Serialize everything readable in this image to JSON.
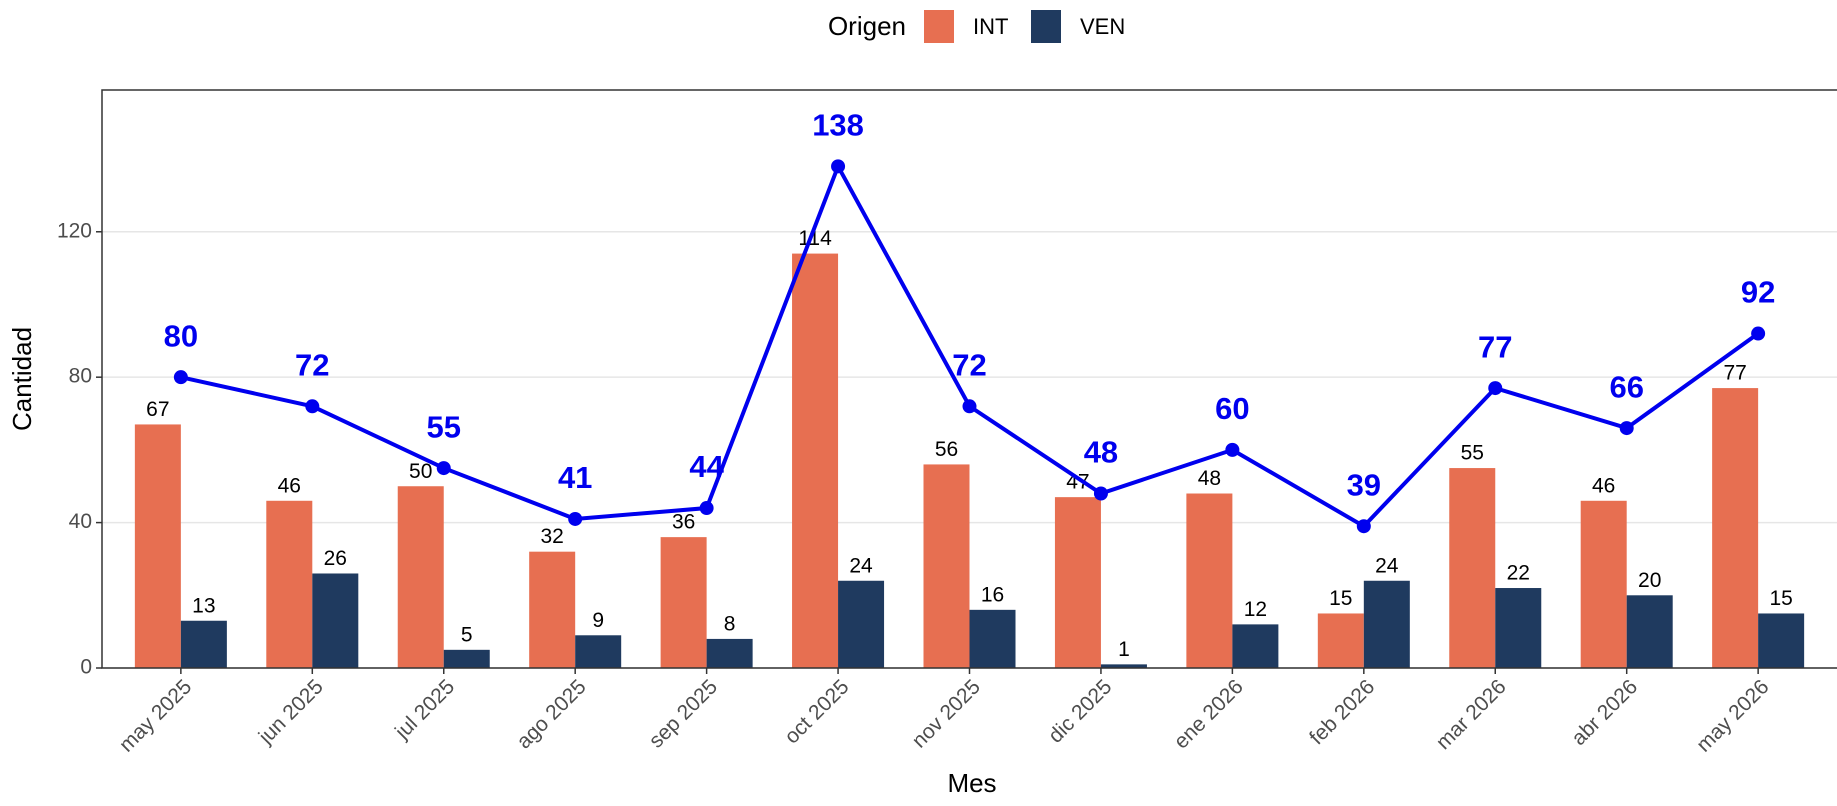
{
  "chart_data": {
    "type": "bar",
    "x_label": "Mes",
    "y_label": "Cantidad",
    "legend_title": "Origen",
    "categories": [
      "may 2025",
      "jun 2025",
      "jul 2025",
      "ago 2025",
      "sep 2025",
      "oct 2025",
      "nov 2025",
      "dic 2025",
      "ene 2026",
      "feb 2026",
      "mar 2026",
      "abr 2026",
      "may 2026"
    ],
    "series": [
      {
        "name": "INT",
        "color": "#e76f51",
        "values": [
          67,
          46,
          50,
          32,
          36,
          114,
          56,
          47,
          48,
          15,
          55,
          46,
          77
        ]
      },
      {
        "name": "VEN",
        "color": "#1f3a5f",
        "values": [
          13,
          26,
          5,
          9,
          8,
          24,
          16,
          1,
          12,
          24,
          22,
          20,
          15
        ]
      }
    ],
    "line": {
      "color": "#0000ee",
      "values": [
        80,
        72,
        55,
        41,
        44,
        138,
        72,
        48,
        60,
        39,
        77,
        66,
        92
      ]
    },
    "ylim": [
      0,
      159
    ],
    "yticks": [
      0,
      40,
      80,
      120
    ],
    "grid": true
  }
}
